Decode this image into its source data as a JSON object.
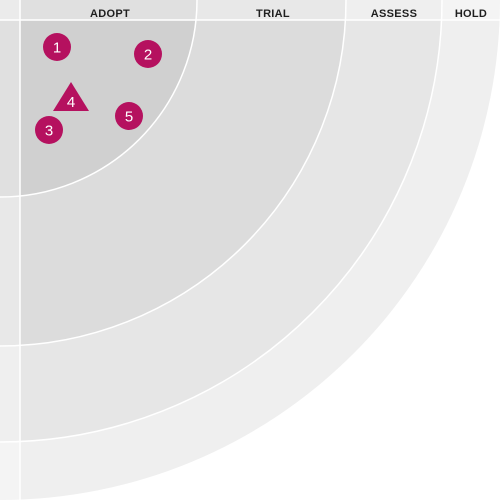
{
  "rings": [
    {
      "name": "ADOPT",
      "fill": "#d0d0d0"
    },
    {
      "name": "TRIAL",
      "fill": "#dcdcdc"
    },
    {
      "name": "ASSESS",
      "fill": "#e6e6e6"
    },
    {
      "name": "HOLD",
      "fill": "#efefef"
    }
  ],
  "blips": [
    {
      "id": "1",
      "label": "1",
      "shape": "circle",
      "ring": "ADOPT"
    },
    {
      "id": "2",
      "label": "2",
      "shape": "circle",
      "ring": "ADOPT"
    },
    {
      "id": "3",
      "label": "3",
      "shape": "circle",
      "ring": "ADOPT"
    },
    {
      "id": "4",
      "label": "4",
      "shape": "triangle",
      "ring": "ADOPT"
    },
    {
      "id": "5",
      "label": "5",
      "shape": "circle",
      "ring": "ADOPT"
    }
  ],
  "colors": {
    "blip": "#b5115f",
    "divider": "#ffffff",
    "label_text": "#1f1f1f"
  }
}
